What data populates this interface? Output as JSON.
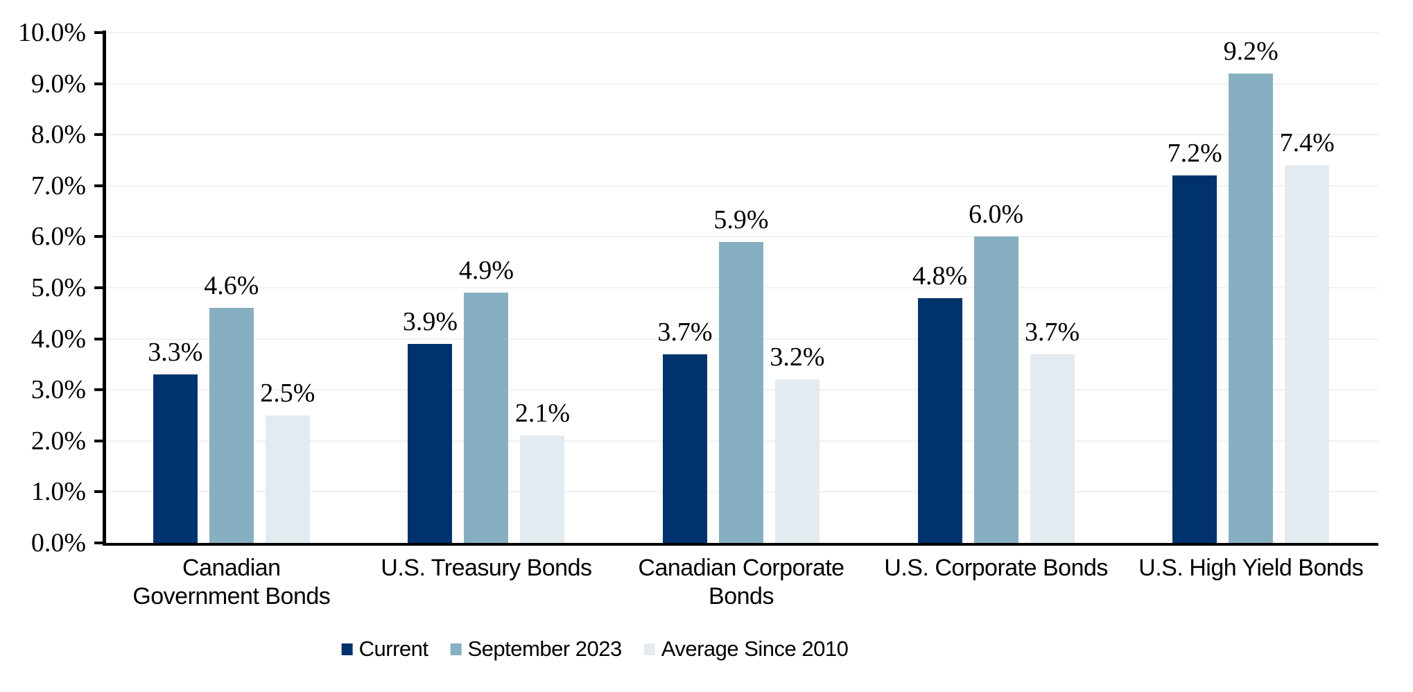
{
  "chart_data": {
    "type": "bar",
    "title": "",
    "categories": [
      "Canadian Government Bonds",
      "U.S. Treasury Bonds",
      "Canadian Corporate Bonds",
      "U.S. Corporate Bonds",
      "U.S. High Yield Bonds"
    ],
    "category_lines": [
      [
        "Canadian",
        "Government Bonds"
      ],
      [
        "U.S. Treasury Bonds"
      ],
      [
        "Canadian Corporate",
        "Bonds"
      ],
      [
        "U.S. Corporate Bonds"
      ],
      [
        "U.S. High Yield Bonds"
      ]
    ],
    "series": [
      {
        "name": "Current",
        "color": "#00336E",
        "values": [
          3.3,
          3.9,
          3.7,
          4.8,
          7.2
        ],
        "labels": [
          "3.3%",
          "3.9%",
          "3.7%",
          "4.8%",
          "7.2%"
        ]
      },
      {
        "name": "September 2023",
        "color": "#87AFC2",
        "values": [
          4.6,
          4.9,
          5.9,
          6.0,
          9.2
        ],
        "labels": [
          "4.6%",
          "4.9%",
          "5.9%",
          "6.0%",
          "9.2%"
        ]
      },
      {
        "name": "Average Since 2010",
        "color": "#E4EBF0",
        "values": [
          2.5,
          2.1,
          3.2,
          3.7,
          7.4
        ],
        "labels": [
          "2.5%",
          "2.1%",
          "3.2%",
          "3.7%",
          "7.4%"
        ]
      }
    ],
    "xlabel": "",
    "ylabel": "",
    "ylim": [
      0,
      10
    ],
    "ytick_step": 1.0,
    "yticks": [
      "0.0%",
      "1.0%",
      "2.0%",
      "3.0%",
      "4.0%",
      "5.0%",
      "6.0%",
      "7.0%",
      "8.0%",
      "9.0%",
      "10.0%"
    ],
    "grid": true,
    "legend_position": "bottom",
    "colors": {
      "axis": "#000000",
      "gridline": "#F2F2F2",
      "text": "#000000",
      "background": "#FFFFFF"
    }
  }
}
